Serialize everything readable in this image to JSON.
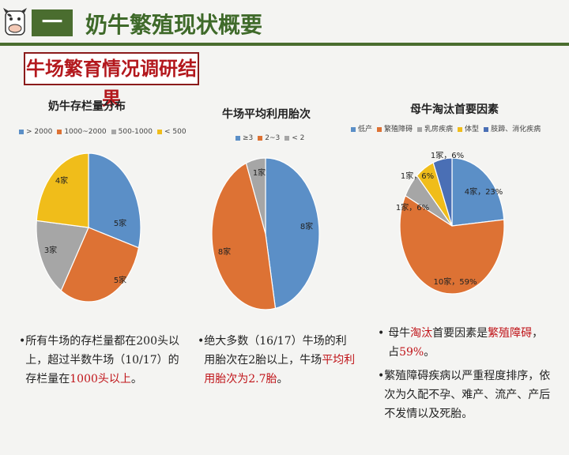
{
  "header": {
    "tab": "一",
    "title": "奶牛繁殖现状概要"
  },
  "subtitle": "牛场繁育情况调研结果",
  "charts": [
    {
      "title": "奶牛存栏量分布",
      "legend": [
        "> 2000",
        "1000~2000",
        "500-1000",
        "< 500"
      ],
      "colors": [
        "#5b8fc7",
        "#dd7234",
        "#a6a6a6",
        "#f0bd1a"
      ],
      "labels": [
        "5家",
        "5家",
        "3家",
        "4家"
      ]
    },
    {
      "title": "牛场平均利用胎次",
      "legend": [
        "≥3",
        "2~3",
        "< 2"
      ],
      "colors": [
        "#5b8fc7",
        "#dd7234",
        "#a6a6a6"
      ],
      "labels": [
        "8家",
        "8家",
        "1家"
      ]
    },
    {
      "title": "母牛淘汰首要因素",
      "legend": [
        "低产",
        "繁殖障碍",
        "乳房疾病",
        "体型",
        "肢蹄、消化疾病"
      ],
      "colors": [
        "#5b8fc7",
        "#dd7234",
        "#a6a6a6",
        "#f0bd1a",
        "#4a6fb5"
      ],
      "labels": [
        "4家，23%",
        "10家，59%",
        "1家，6%",
        "1家，6%",
        "1家，6%"
      ]
    }
  ],
  "chart_data": [
    {
      "type": "pie",
      "title": "奶牛存栏量分布",
      "categories": [
        "> 2000",
        "1000~2000",
        "500-1000",
        "< 500"
      ],
      "values": [
        5,
        5,
        3,
        4
      ]
    },
    {
      "type": "pie",
      "title": "牛场平均利用胎次",
      "categories": [
        "≥3",
        "2~3",
        "< 2"
      ],
      "values": [
        8,
        8,
        1
      ]
    },
    {
      "type": "pie",
      "title": "母牛淘汰首要因素",
      "categories": [
        "低产",
        "繁殖障碍",
        "乳房疾病",
        "体型",
        "肢蹄、消化疾病"
      ],
      "values": [
        4,
        10,
        1,
        1,
        1
      ]
    }
  ],
  "text1": {
    "a": "所有牛场的存栏量都在200头以上，超过半数牛场（10/17）的存栏量在",
    "b": "1000头以上",
    "c": "。"
  },
  "text2": {
    "a": "绝大多数（16/17）牛场的利用胎次在2胎以上，牛场",
    "b": "平均利用胎次为2.7胎",
    "c": "。"
  },
  "text3": {
    "a": "母牛",
    "b": "淘汰",
    "c": "首要因素是",
    "d": "繁殖障碍",
    "e": "，占",
    "f": "59%",
    "g": "。",
    "h": "繁殖障碍疾病以严重程度排序，依次为久配不孕、难产、流产、产后不发情以及死胎。"
  }
}
